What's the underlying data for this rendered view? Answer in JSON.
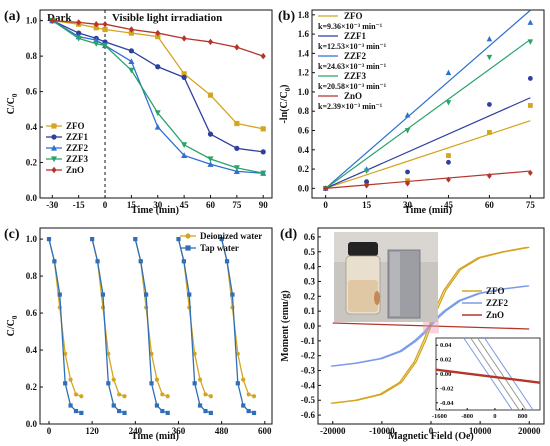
{
  "panels": [
    {
      "label": "(a)",
      "chart_data": {
        "type": "line",
        "xlabel": "Time (min)",
        "ylabel": "C/C0",
        "xlim": [
          -37,
          95
        ],
        "ylim": [
          0.0,
          1.06
        ],
        "xticks": [
          "-30",
          "-15",
          "0",
          "15",
          "30",
          "45",
          "60",
          "75",
          "90"
        ],
        "yticks": [
          "0.0",
          "0.2",
          "0.4",
          "0.6",
          "0.8",
          "1.0"
        ],
        "annotations": [
          "Dark",
          "Visible light irradiation"
        ],
        "divider_x": 0,
        "legend_position": "bottom-left",
        "series": [
          {
            "name": "ZFO",
            "color": "#d4a520",
            "marker": "square",
            "x": [
              -30,
              -15,
              -5,
              0,
              15,
              30,
              45,
              60,
              75,
              90
            ],
            "y": [
              1.0,
              0.98,
              0.96,
              0.95,
              0.93,
              0.91,
              0.7,
              0.58,
              0.42,
              0.39
            ]
          },
          {
            "name": "ZZF1",
            "color": "#2e3f9e",
            "marker": "circle",
            "x": [
              -30,
              -15,
              -5,
              0,
              15,
              30,
              45,
              60,
              75,
              90
            ],
            "y": [
              1.0,
              0.93,
              0.9,
              0.88,
              0.83,
              0.74,
              0.68,
              0.36,
              0.28,
              0.26
            ]
          },
          {
            "name": "ZZF2",
            "color": "#2f6fd1",
            "marker": "triangle-up",
            "x": [
              -30,
              -15,
              -5,
              0,
              15,
              30,
              45,
              60,
              75,
              90
            ],
            "y": [
              1.0,
              0.91,
              0.89,
              0.86,
              0.77,
              0.4,
              0.24,
              0.19,
              0.15,
              0.14
            ]
          },
          {
            "name": "ZZF3",
            "color": "#2aa36a",
            "marker": "triangle-down",
            "x": [
              -30,
              -15,
              -5,
              0,
              15,
              30,
              45,
              60,
              75,
              90
            ],
            "y": [
              1.0,
              0.9,
              0.87,
              0.86,
              0.72,
              0.48,
              0.3,
              0.22,
              0.17,
              0.14
            ]
          },
          {
            "name": "ZnO",
            "color": "#b5352b",
            "marker": "diamond",
            "x": [
              -30,
              -15,
              -5,
              0,
              15,
              30,
              45,
              60,
              75,
              90
            ],
            "y": [
              1.0,
              0.99,
              0.98,
              0.98,
              0.95,
              0.93,
              0.9,
              0.88,
              0.85,
              0.8
            ]
          }
        ]
      }
    },
    {
      "label": "(b)",
      "chart_data": {
        "type": "scatter",
        "xlabel": "Time (min)",
        "ylabel": "-ln(C/C0)",
        "xlim": [
          -5,
          80
        ],
        "ylim": [
          -0.1,
          1.85
        ],
        "xticks": [
          "0",
          "15",
          "30",
          "45",
          "60",
          "75"
        ],
        "yticks": [
          "0.0",
          "0.2",
          "0.4",
          "0.6",
          "0.8",
          "1.0",
          "1.2",
          "1.4",
          "1.6",
          "1.8"
        ],
        "legend_position": "top-left",
        "series": [
          {
            "name": "ZFO",
            "k_label": "k=9.36×10⁻³ min⁻¹",
            "k": 0.00936,
            "color": "#d4a520",
            "marker": "square",
            "x": [
              0,
              15,
              30,
              45,
              60,
              75
            ],
            "y": [
              0.0,
              0.05,
              0.08,
              0.34,
              0.58,
              0.86
            ]
          },
          {
            "name": "ZZF1",
            "k_label": "k=12.53×10⁻³ min⁻¹",
            "k": 0.01253,
            "color": "#2e3f9e",
            "marker": "circle",
            "x": [
              0,
              15,
              30,
              45,
              60,
              75
            ],
            "y": [
              0.0,
              0.07,
              0.17,
              0.27,
              0.87,
              1.14
            ]
          },
          {
            "name": "ZZF2",
            "k_label": "k=24.63×10⁻³ min⁻¹",
            "k": 0.02463,
            "color": "#2f6fd1",
            "marker": "triangle-up",
            "x": [
              0,
              15,
              30,
              45,
              60,
              75
            ],
            "y": [
              0.0,
              0.2,
              0.76,
              1.2,
              1.55,
              1.72
            ]
          },
          {
            "name": "ZZF3",
            "k_label": "k=20.58×10⁻³ min⁻¹",
            "k": 0.02058,
            "color": "#2aa36a",
            "marker": "triangle-down",
            "x": [
              0,
              15,
              30,
              45,
              60,
              75
            ],
            "y": [
              0.0,
              0.18,
              0.6,
              0.89,
              1.36,
              1.52
            ]
          },
          {
            "name": "ZnO",
            "k_label": "k=2.39×10⁻³ min⁻¹",
            "k": 0.00239,
            "color": "#b5352b",
            "marker": "diamond",
            "x": [
              0,
              15,
              30,
              45,
              60,
              75
            ],
            "y": [
              0.0,
              0.03,
              0.05,
              0.09,
              0.13,
              0.16
            ]
          }
        ]
      }
    },
    {
      "label": "(c)",
      "chart_data": {
        "type": "line",
        "xlabel": "Time (min)",
        "ylabel": "C/C0",
        "xlim": [
          -25,
          620
        ],
        "ylim": [
          0.0,
          1.06
        ],
        "xticks": [
          "0",
          "120",
          "240",
          "360",
          "480",
          "600"
        ],
        "yticks": [
          "0.0",
          "0.2",
          "0.4",
          "0.6",
          "0.8",
          "1.0"
        ],
        "legend_position": "top-right",
        "series": [
          {
            "name": "Deionized water",
            "color": "#d4a520",
            "marker": "circle",
            "x": [
              0,
              15,
              30,
              45,
              60,
              75,
              90,
              120,
              135,
              150,
              165,
              180,
              195,
              210,
              240,
              255,
              270,
              285,
              300,
              315,
              330,
              360,
              375,
              390,
              405,
              420,
              435,
              450,
              480,
              495,
              510,
              525,
              540,
              555,
              570
            ],
            "y": [
              1.0,
              0.88,
              0.63,
              0.38,
              0.24,
              0.16,
              0.15,
              1.0,
              0.88,
              0.63,
              0.38,
              0.24,
              0.16,
              0.15,
              1.0,
              0.88,
              0.63,
              0.38,
              0.24,
              0.16,
              0.15,
              1.0,
              0.88,
              0.63,
              0.38,
              0.24,
              0.16,
              0.15,
              1.0,
              0.88,
              0.63,
              0.38,
              0.24,
              0.16,
              0.15
            ]
          },
          {
            "name": "Tap water",
            "color": "#2f6fb8",
            "marker": "square",
            "x": [
              0,
              15,
              30,
              45,
              60,
              75,
              90,
              120,
              135,
              150,
              165,
              180,
              195,
              210,
              240,
              255,
              270,
              285,
              300,
              315,
              330,
              360,
              375,
              390,
              405,
              420,
              435,
              450,
              480,
              495,
              510,
              525,
              540,
              555,
              570
            ],
            "y": [
              1.0,
              0.88,
              0.7,
              0.22,
              0.1,
              0.07,
              0.06,
              1.0,
              0.88,
              0.7,
              0.22,
              0.1,
              0.07,
              0.06,
              1.0,
              0.88,
              0.7,
              0.22,
              0.1,
              0.07,
              0.06,
              1.0,
              0.88,
              0.7,
              0.22,
              0.1,
              0.07,
              0.06,
              1.0,
              0.88,
              0.7,
              0.22,
              0.1,
              0.07,
              0.06
            ]
          }
        ]
      }
    },
    {
      "label": "(d)",
      "chart_data": {
        "type": "line",
        "xlabel": "Magnetic Field (Oe)",
        "ylabel": "Moment (emu/g)",
        "xlim": [
          -23000,
          23000
        ],
        "ylim": [
          -0.66,
          0.66
        ],
        "xticks": [
          "-20000",
          "-10000",
          "0",
          "10000",
          "20000"
        ],
        "yticks": [
          "-0.6",
          "-0.5",
          "-0.4",
          "-0.3",
          "-0.2",
          "-0.1",
          "0.0",
          "0.1",
          "0.2",
          "0.3",
          "0.4",
          "0.5",
          "0.6"
        ],
        "legend_position": "right",
        "series": [
          {
            "name": "ZFO",
            "color": "#d4a520",
            "x": [
              -20000,
              -15000,
              -10000,
              -6000,
              -3000,
              -1000,
              0,
              1000,
              3000,
              6000,
              10000,
              15000,
              20000
            ],
            "y": [
              -0.52,
              -0.5,
              -0.46,
              -0.38,
              -0.24,
              -0.09,
              0.0,
              0.09,
              0.24,
              0.38,
              0.46,
              0.5,
              0.53
            ]
          },
          {
            "name": "ZZF2",
            "color": "#7a9be8",
            "x": [
              -20000,
              -15000,
              -10000,
              -6000,
              -3000,
              -1000,
              0,
              1000,
              3000,
              6000,
              10000,
              15000,
              20000
            ],
            "y": [
              -0.27,
              -0.25,
              -0.22,
              -0.17,
              -0.1,
              -0.04,
              0.0,
              0.04,
              0.1,
              0.17,
              0.22,
              0.25,
              0.27
            ]
          },
          {
            "name": "ZnO",
            "color": "#b5352b",
            "x": [
              -20000,
              0,
              20000
            ],
            "y": [
              0.02,
              0.0,
              -0.02
            ]
          }
        ],
        "inset": {
          "xticks": [
            "-1600",
            "-800",
            "0",
            "800"
          ],
          "yticks": [
            "-0.04",
            "-0.02",
            "0.00",
            "0.02",
            "0.04"
          ],
          "xlim": [
            -1700,
            1300
          ],
          "ylim": [
            -0.05,
            0.05
          ]
        }
      }
    }
  ]
}
